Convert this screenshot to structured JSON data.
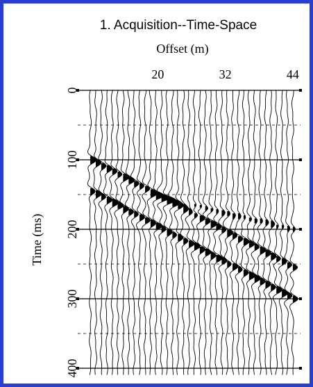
{
  "chart_data": {
    "type": "seismic-wiggle",
    "title": "1. Acquisition--Time-Space",
    "xlabel": "Offset (m)",
    "ylabel": "Time (ms)",
    "x_ticks": [
      "20",
      "32",
      "44"
    ],
    "x_tick_values": [
      20,
      32,
      44
    ],
    "y_ticks": [
      "0",
      "100",
      "200",
      "300",
      "400"
    ],
    "y_tick_values": [
      0,
      100,
      200,
      300,
      400
    ],
    "xlim": [
      7,
      45
    ],
    "ylim": [
      0,
      410
    ],
    "trace_count": 38,
    "events": [
      {
        "name": "",
        "offset_start": 8,
        "time_start": 100,
        "offset_end": 44,
        "time_end": 255
      },
      {
        "name": "",
        "offset_start": 8,
        "time_start": 145,
        "offset_end": 44,
        "time_end": 300
      },
      {
        "name": "",
        "offset_start": 18,
        "time_start": 150,
        "offset_end": 44,
        "time_end": 200
      }
    ],
    "grid_major_y": [
      0,
      100,
      200,
      300,
      400
    ],
    "grid_minor_y": [
      50,
      150,
      250,
      350
    ],
    "colors": {
      "border": "#2a3fd0",
      "trace": "#000000"
    }
  }
}
